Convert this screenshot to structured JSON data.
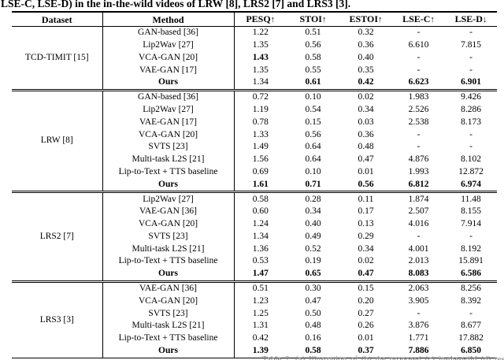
{
  "page": {
    "caption_top": "LSE-C, LSE-D) in the in-the-wild videos of LRW [8], LRS2 [7] and LRS3 [3].",
    "caption_bottom_clipped": "Table 2. (a) Illustration of (b) the proposed (c) in-the-wild (d) results."
  },
  "table": {
    "headers": [
      {
        "label": "Dataset",
        "arrow": ""
      },
      {
        "label": "Method",
        "arrow": ""
      },
      {
        "label": "PESQ",
        "arrow": "↑"
      },
      {
        "label": "STOI",
        "arrow": "↑"
      },
      {
        "label": "ESTOI",
        "arrow": "↑"
      },
      {
        "label": "LSE-C",
        "arrow": "↑"
      },
      {
        "label": "LSE-D",
        "arrow": "↓"
      }
    ],
    "sections": [
      {
        "dataset": "TCD-TIMIT [15]",
        "rows": [
          {
            "method": "GAN-based [36]",
            "bold_method": false,
            "values": [
              "1.22",
              "0.51",
              "0.32",
              "-",
              "-"
            ],
            "bold": [
              false,
              false,
              false,
              false,
              false
            ]
          },
          {
            "method": "Lip2Wav [27]",
            "bold_method": false,
            "values": [
              "1.35",
              "0.56",
              "0.36",
              "6.610",
              "7.815"
            ],
            "bold": [
              false,
              false,
              false,
              false,
              false
            ]
          },
          {
            "method": "VCA-GAN [20]",
            "bold_method": false,
            "values": [
              "1.43",
              "0.58",
              "0.40",
              "-",
              "-"
            ],
            "bold": [
              true,
              false,
              false,
              false,
              false
            ]
          },
          {
            "method": "VAE-GAN [17]",
            "bold_method": false,
            "values": [
              "1.35",
              "0.55",
              "0.35",
              "-",
              "-"
            ],
            "bold": [
              false,
              false,
              false,
              false,
              false
            ]
          },
          {
            "method": "Ours",
            "bold_method": true,
            "values": [
              "1.34",
              "0.61",
              "0.42",
              "6.623",
              "6.901"
            ],
            "bold": [
              false,
              true,
              true,
              true,
              true
            ]
          }
        ]
      },
      {
        "dataset": "LRW [8]",
        "rows": [
          {
            "method": "GAN-based [36]",
            "bold_method": false,
            "values": [
              "0.72",
              "0.10",
              "0.02",
              "1.983",
              "9.426"
            ],
            "bold": [
              false,
              false,
              false,
              false,
              false
            ]
          },
          {
            "method": "Lip2Wav [27]",
            "bold_method": false,
            "values": [
              "1.19",
              "0.54",
              "0.34",
              "2.526",
              "8.286"
            ],
            "bold": [
              false,
              false,
              false,
              false,
              false
            ]
          },
          {
            "method": "VAE-GAN [17]",
            "bold_method": false,
            "values": [
              "0.78",
              "0.15",
              "0.03",
              "2.538",
              "8.173"
            ],
            "bold": [
              false,
              false,
              false,
              false,
              false
            ]
          },
          {
            "method": "VCA-GAN [20]",
            "bold_method": false,
            "values": [
              "1.33",
              "0.56",
              "0.36",
              "-",
              "-"
            ],
            "bold": [
              false,
              false,
              false,
              false,
              false
            ]
          },
          {
            "method": "SVTS [23]",
            "bold_method": false,
            "values": [
              "1.49",
              "0.64",
              "0.48",
              "-",
              "-"
            ],
            "bold": [
              false,
              false,
              false,
              false,
              false
            ]
          },
          {
            "method": "Multi-task L2S [21]",
            "bold_method": false,
            "values": [
              "1.56",
              "0.64",
              "0.47",
              "4.876",
              "8.102"
            ],
            "bold": [
              false,
              false,
              false,
              false,
              false
            ]
          },
          {
            "method": "Lip-to-Text + TTS baseline",
            "bold_method": false,
            "values": [
              "0.69",
              "0.10",
              "0.01",
              "1.993",
              "12.872"
            ],
            "bold": [
              false,
              false,
              false,
              false,
              false
            ]
          },
          {
            "method": "Ours",
            "bold_method": true,
            "values": [
              "1.61",
              "0.71",
              "0.56",
              "6.812",
              "6.974"
            ],
            "bold": [
              true,
              true,
              true,
              true,
              true
            ]
          }
        ]
      },
      {
        "dataset": "LRS2 [7]",
        "rows": [
          {
            "method": "Lip2Wav [27]",
            "bold_method": false,
            "values": [
              "0.58",
              "0.28",
              "0.11",
              "1.874",
              "11.48"
            ],
            "bold": [
              false,
              false,
              false,
              false,
              false
            ]
          },
          {
            "method": "VAE-GAN [36]",
            "bold_method": false,
            "values": [
              "0.60",
              "0.34",
              "0.17",
              "2.507",
              "8.155"
            ],
            "bold": [
              false,
              false,
              false,
              false,
              false
            ]
          },
          {
            "method": "VCA-GAN [20]",
            "bold_method": false,
            "values": [
              "1.24",
              "0.40",
              "0.13",
              "4.016",
              "7.914"
            ],
            "bold": [
              false,
              false,
              false,
              false,
              false
            ]
          },
          {
            "method": "SVTS [23]",
            "bold_method": false,
            "values": [
              "1.34",
              "0.49",
              "0.29",
              "-",
              "-"
            ],
            "bold": [
              false,
              false,
              false,
              false,
              false
            ]
          },
          {
            "method": "Multi-task L2S [21]",
            "bold_method": false,
            "values": [
              "1.36",
              "0.52",
              "0.34",
              "4.001",
              "8.192"
            ],
            "bold": [
              false,
              false,
              false,
              false,
              false
            ]
          },
          {
            "method": "Lip-to-Text + TTS baseline",
            "bold_method": false,
            "values": [
              "0.53",
              "0.19",
              "0.02",
              "2.013",
              "15.891"
            ],
            "bold": [
              false,
              false,
              false,
              false,
              false
            ]
          },
          {
            "method": "Ours",
            "bold_method": true,
            "values": [
              "1.47",
              "0.65",
              "0.47",
              "8.083",
              "6.586"
            ],
            "bold": [
              true,
              true,
              true,
              true,
              true
            ]
          }
        ]
      },
      {
        "dataset": "LRS3 [3]",
        "rows": [
          {
            "method": "VAE-GAN [36]",
            "bold_method": false,
            "values": [
              "0.51",
              "0.30",
              "0.15",
              "2.063",
              "8.256"
            ],
            "bold": [
              false,
              false,
              false,
              false,
              false
            ]
          },
          {
            "method": "VCA-GAN [20]",
            "bold_method": false,
            "values": [
              "1.23",
              "0.47",
              "0.20",
              "3.905",
              "8.392"
            ],
            "bold": [
              false,
              false,
              false,
              false,
              false
            ]
          },
          {
            "method": "SVTS [23]",
            "bold_method": false,
            "values": [
              "1.25",
              "0.50",
              "0.27",
              "-",
              "-"
            ],
            "bold": [
              false,
              false,
              false,
              false,
              false
            ]
          },
          {
            "method": "Multi-task L2S [21]",
            "bold_method": false,
            "values": [
              "1.31",
              "0.48",
              "0.26",
              "3.876",
              "8.677"
            ],
            "bold": [
              false,
              false,
              false,
              false,
              false
            ]
          },
          {
            "method": "Lip-to-Text + TTS baseline",
            "bold_method": false,
            "values": [
              "0.42",
              "0.16",
              "0.01",
              "1.771",
              "17.882"
            ],
            "bold": [
              false,
              false,
              false,
              false,
              false
            ]
          },
          {
            "method": "Ours",
            "bold_method": true,
            "values": [
              "1.39",
              "0.58",
              "0.37",
              "7.886",
              "6.850"
            ],
            "bold": [
              true,
              true,
              true,
              true,
              true
            ]
          }
        ]
      }
    ]
  }
}
